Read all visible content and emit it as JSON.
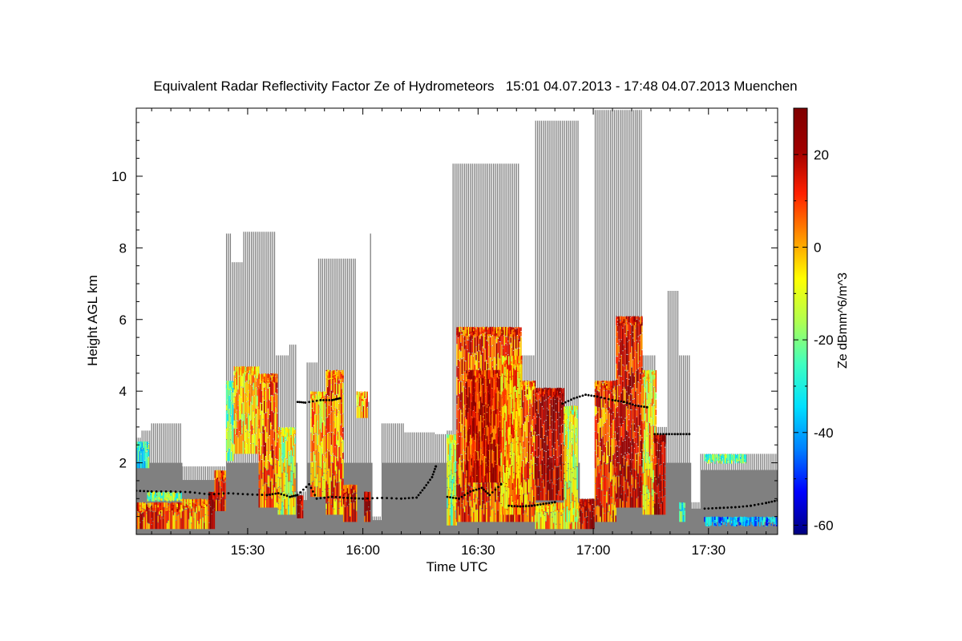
{
  "chart_data": {
    "type": "heatmap",
    "title": "Equivalent Radar Reflectivity Factor Ze of Hydrometeors   15:01 04.07.2013 - 17:48 04.07.2013 Muenchen",
    "xlabel": "Time UTC",
    "ylabel": "Height AGL km",
    "colorbar_label": "Ze dBmm^6/m^3",
    "x_range_minutes": [
      901,
      1068
    ],
    "x_ticks": [
      {
        "label": "15:30",
        "minutes": 930
      },
      {
        "label": "16:00",
        "minutes": 960
      },
      {
        "label": "16:30",
        "minutes": 990
      },
      {
        "label": "17:00",
        "minutes": 1020
      },
      {
        "label": "17:30",
        "minutes": 1050
      }
    ],
    "ylim": [
      0,
      11.9
    ],
    "y_ticks": [
      2,
      4,
      6,
      8,
      10
    ],
    "colorbar_range": [
      -62,
      30
    ],
    "colorbar_ticks": [
      20,
      0,
      -20,
      -40,
      -60
    ],
    "colorbar_colors": [
      "#00007f",
      "#0000ff",
      "#0080ff",
      "#00e0ff",
      "#40ffbf",
      "#b0ff50",
      "#ffff00",
      "#ff9000",
      "#ff2000",
      "#a00000",
      "#7f0000"
    ],
    "no_signal_color": "#808080",
    "echo_top_blocks": [
      {
        "t0": 901.0,
        "t1": 902.5,
        "top": 2.7
      },
      {
        "t0": 902.5,
        "t1": 905.0,
        "top": 2.9
      },
      {
        "t0": 905.0,
        "t1": 913.0,
        "top": 3.1
      },
      {
        "t0": 913.0,
        "t1": 920.0,
        "top": 1.9
      },
      {
        "t0": 920.0,
        "t1": 924.5,
        "top": 1.9
      },
      {
        "t0": 924.5,
        "t1": 926.0,
        "top": 8.4
      },
      {
        "t0": 926.0,
        "t1": 929.0,
        "top": 7.6
      },
      {
        "t0": 929.0,
        "t1": 937.5,
        "top": 8.45
      },
      {
        "t0": 937.5,
        "t1": 941.0,
        "top": 5.0
      },
      {
        "t0": 941.0,
        "t1": 943.0,
        "top": 5.3
      },
      {
        "t0": 943.0,
        "t1": 945.5,
        "top": 1.2
      },
      {
        "t0": 945.5,
        "t1": 948.5,
        "top": 4.8
      },
      {
        "t0": 948.5,
        "t1": 954.0,
        "top": 7.7
      },
      {
        "t0": 954.0,
        "t1": 958.5,
        "top": 7.7
      },
      {
        "t0": 958.5,
        "t1": 962.0,
        "top": 3.7
      },
      {
        "t0": 962.0,
        "t1": 962.5,
        "top": 8.4
      },
      {
        "t0": 962.5,
        "t1": 965.0,
        "top": 0.5
      },
      {
        "t0": 965.0,
        "t1": 971.0,
        "top": 3.1
      },
      {
        "t0": 971.0,
        "t1": 979.0,
        "top": 2.85
      },
      {
        "t0": 979.0,
        "t1": 982.0,
        "top": 2.8
      },
      {
        "t0": 982.0,
        "t1": 983.5,
        "top": 2.9
      },
      {
        "t0": 983.5,
        "t1": 996.0,
        "top": 10.35
      },
      {
        "t0": 996.0,
        "t1": 1001.0,
        "top": 10.35
      },
      {
        "t0": 1001.0,
        "t1": 1005.0,
        "top": 5.0
      },
      {
        "t0": 1005.0,
        "t1": 1016.5,
        "top": 11.55
      },
      {
        "t0": 1016.5,
        "t1": 1020.5,
        "top": 1.0
      },
      {
        "t0": 1020.5,
        "t1": 1031.5,
        "top": 11.85
      },
      {
        "t0": 1031.5,
        "t1": 1033.0,
        "top": 11.85
      },
      {
        "t0": 1033.0,
        "t1": 1036.5,
        "top": 5.0
      },
      {
        "t0": 1036.5,
        "t1": 1039.5,
        "top": 3.0
      },
      {
        "t0": 1039.5,
        "t1": 1042.5,
        "top": 6.8
      },
      {
        "t0": 1042.5,
        "t1": 1044.5,
        "top": 5.0
      },
      {
        "t0": 1044.5,
        "t1": 1045.5,
        "top": 5.0
      },
      {
        "t0": 1045.5,
        "t1": 1048.0,
        "top": 0.9
      },
      {
        "t0": 1048.0,
        "t1": 1068.0,
        "top": 2.25
      }
    ],
    "reflectivity_cells": [
      {
        "t0": 901.0,
        "t1": 913.0,
        "h0": 0.1,
        "h1": 0.9,
        "ze": 8
      },
      {
        "t0": 901.2,
        "t1": 904.5,
        "h0": 1.8,
        "h1": 2.6,
        "ze": -28
      },
      {
        "t0": 904.0,
        "t1": 913.0,
        "h0": 0.9,
        "h1": 1.2,
        "ze": -18
      },
      {
        "t0": 913.0,
        "t1": 920.0,
        "h0": 0.1,
        "h1": 1.0,
        "ze": 3
      },
      {
        "t0": 920.0,
        "t1": 921.5,
        "h0": 0.1,
        "h1": 1.2,
        "ze": 25
      },
      {
        "t0": 921.5,
        "t1": 924.5,
        "h0": 0.6,
        "h1": 1.8,
        "ze": 12
      },
      {
        "t0": 924.5,
        "t1": 926.5,
        "h0": 2.0,
        "h1": 4.3,
        "ze": -22
      },
      {
        "t0": 926.5,
        "t1": 933.0,
        "h0": 2.2,
        "h1": 4.7,
        "ze": -4
      },
      {
        "t0": 933.0,
        "t1": 938.0,
        "h0": 0.7,
        "h1": 4.5,
        "ze": 6
      },
      {
        "t0": 938.0,
        "t1": 942.5,
        "h0": 0.5,
        "h1": 3.0,
        "ze": -10
      },
      {
        "t0": 943.0,
        "t1": 944.5,
        "h0": 0.4,
        "h1": 1.1,
        "ze": 22
      },
      {
        "t0": 946.5,
        "t1": 950.5,
        "h0": 1.0,
        "h1": 4.0,
        "ze": -2
      },
      {
        "t0": 950.5,
        "t1": 955.0,
        "h0": 0.5,
        "h1": 4.6,
        "ze": 4
      },
      {
        "t0": 955.0,
        "t1": 958.5,
        "h0": 0.3,
        "h1": 1.4,
        "ze": 12
      },
      {
        "t0": 958.5,
        "t1": 961.5,
        "h0": 3.2,
        "h1": 4.0,
        "ze": 0
      },
      {
        "t0": 960.5,
        "t1": 962.0,
        "h0": 0.3,
        "h1": 1.2,
        "ze": 18
      },
      {
        "t0": 982.0,
        "t1": 984.5,
        "h0": 0.2,
        "h1": 2.8,
        "ze": -14
      },
      {
        "t0": 984.5,
        "t1": 1001.5,
        "h0": 0.3,
        "h1": 5.8,
        "ze": 9
      },
      {
        "t0": 987.0,
        "t1": 996.0,
        "h0": 1.4,
        "h1": 4.6,
        "ze": 15
      },
      {
        "t0": 996.0,
        "t1": 1001.5,
        "h0": 0.5,
        "h1": 5.0,
        "ze": 0
      },
      {
        "t0": 1001.5,
        "t1": 1005.0,
        "h0": 0.3,
        "h1": 4.3,
        "ze": 6
      },
      {
        "t0": 1005.0,
        "t1": 1012.5,
        "h0": 0.9,
        "h1": 4.1,
        "ze": 21
      },
      {
        "t0": 1005.0,
        "t1": 1016.5,
        "h0": 0.1,
        "h1": 0.9,
        "ze": -3
      },
      {
        "t0": 1012.5,
        "t1": 1016.0,
        "h0": 0.3,
        "h1": 3.6,
        "ze": -10
      },
      {
        "t0": 1016.5,
        "t1": 1020.5,
        "h0": 0.1,
        "h1": 1.0,
        "ze": 20
      },
      {
        "t0": 1020.5,
        "t1": 1026.0,
        "h0": 0.3,
        "h1": 4.3,
        "ze": 9
      },
      {
        "t0": 1026.0,
        "t1": 1033.0,
        "h0": 0.7,
        "h1": 6.1,
        "ze": 15
      },
      {
        "t0": 1033.0,
        "t1": 1036.5,
        "h0": 0.5,
        "h1": 4.6,
        "ze": -6
      },
      {
        "t0": 1036.0,
        "t1": 1039.0,
        "h0": 0.5,
        "h1": 2.8,
        "ze": 24
      },
      {
        "t0": 1042.5,
        "t1": 1044.0,
        "h0": 0.3,
        "h1": 0.9,
        "ze": -26
      },
      {
        "t0": 1049.0,
        "t1": 1060.0,
        "h0": 2.0,
        "h1": 2.25,
        "ze": -22
      },
      {
        "t0": 1049.0,
        "t1": 1068.0,
        "h0": 0.3,
        "h1": 0.5,
        "ze": -40
      }
    ],
    "cloud_base_points": [
      [
        901,
        1.22
      ],
      [
        905,
        1.2
      ],
      [
        910,
        1.2
      ],
      [
        915,
        1.18
      ],
      [
        920,
        1.12
      ],
      [
        925,
        1.15
      ],
      [
        930,
        1.12
      ],
      [
        935,
        1.1
      ],
      [
        938,
        1.15
      ],
      [
        941,
        1.05
      ],
      [
        943,
        1.1
      ],
      [
        946,
        1.4
      ],
      [
        948,
        1.0
      ],
      [
        952,
        1.05
      ],
      [
        956,
        1.02
      ],
      [
        960,
        1.0
      ],
      [
        965,
        1.02
      ],
      [
        970,
        1.0
      ],
      [
        974,
        1.03
      ],
      [
        976,
        1.3
      ],
      [
        978,
        1.6
      ],
      [
        979,
        1.9
      ],
      [
        982,
        1.05
      ],
      [
        985,
        1.0
      ],
      [
        988,
        1.2
      ],
      [
        991,
        1.3
      ],
      [
        993,
        1.1
      ],
      [
        996,
        1.4
      ],
      [
        998,
        0.8
      ],
      [
        1001,
        0.78
      ],
      [
        1004,
        0.8
      ],
      [
        1007,
        0.85
      ],
      [
        1010,
        0.9
      ],
      [
        1012,
        3.65
      ],
      [
        1015,
        3.8
      ],
      [
        1018,
        3.9
      ],
      [
        1021,
        3.85
      ],
      [
        1025,
        3.75
      ],
      [
        1028,
        3.7
      ],
      [
        1031,
        3.6
      ],
      [
        1034,
        3.55
      ],
      [
        1036,
        2.8
      ],
      [
        1039,
        2.8
      ],
      [
        1042,
        2.8
      ],
      [
        1045,
        2.8
      ],
      [
        1049,
        0.72
      ],
      [
        1053,
        0.74
      ],
      [
        1057,
        0.76
      ],
      [
        1061,
        0.8
      ],
      [
        1065,
        0.88
      ],
      [
        1068,
        0.95
      ]
    ],
    "upper_layer_points": [
      [
        943,
        3.7
      ],
      [
        945,
        3.68
      ],
      [
        949,
        3.75
      ],
      [
        952,
        3.75
      ],
      [
        954,
        3.8
      ]
    ]
  }
}
